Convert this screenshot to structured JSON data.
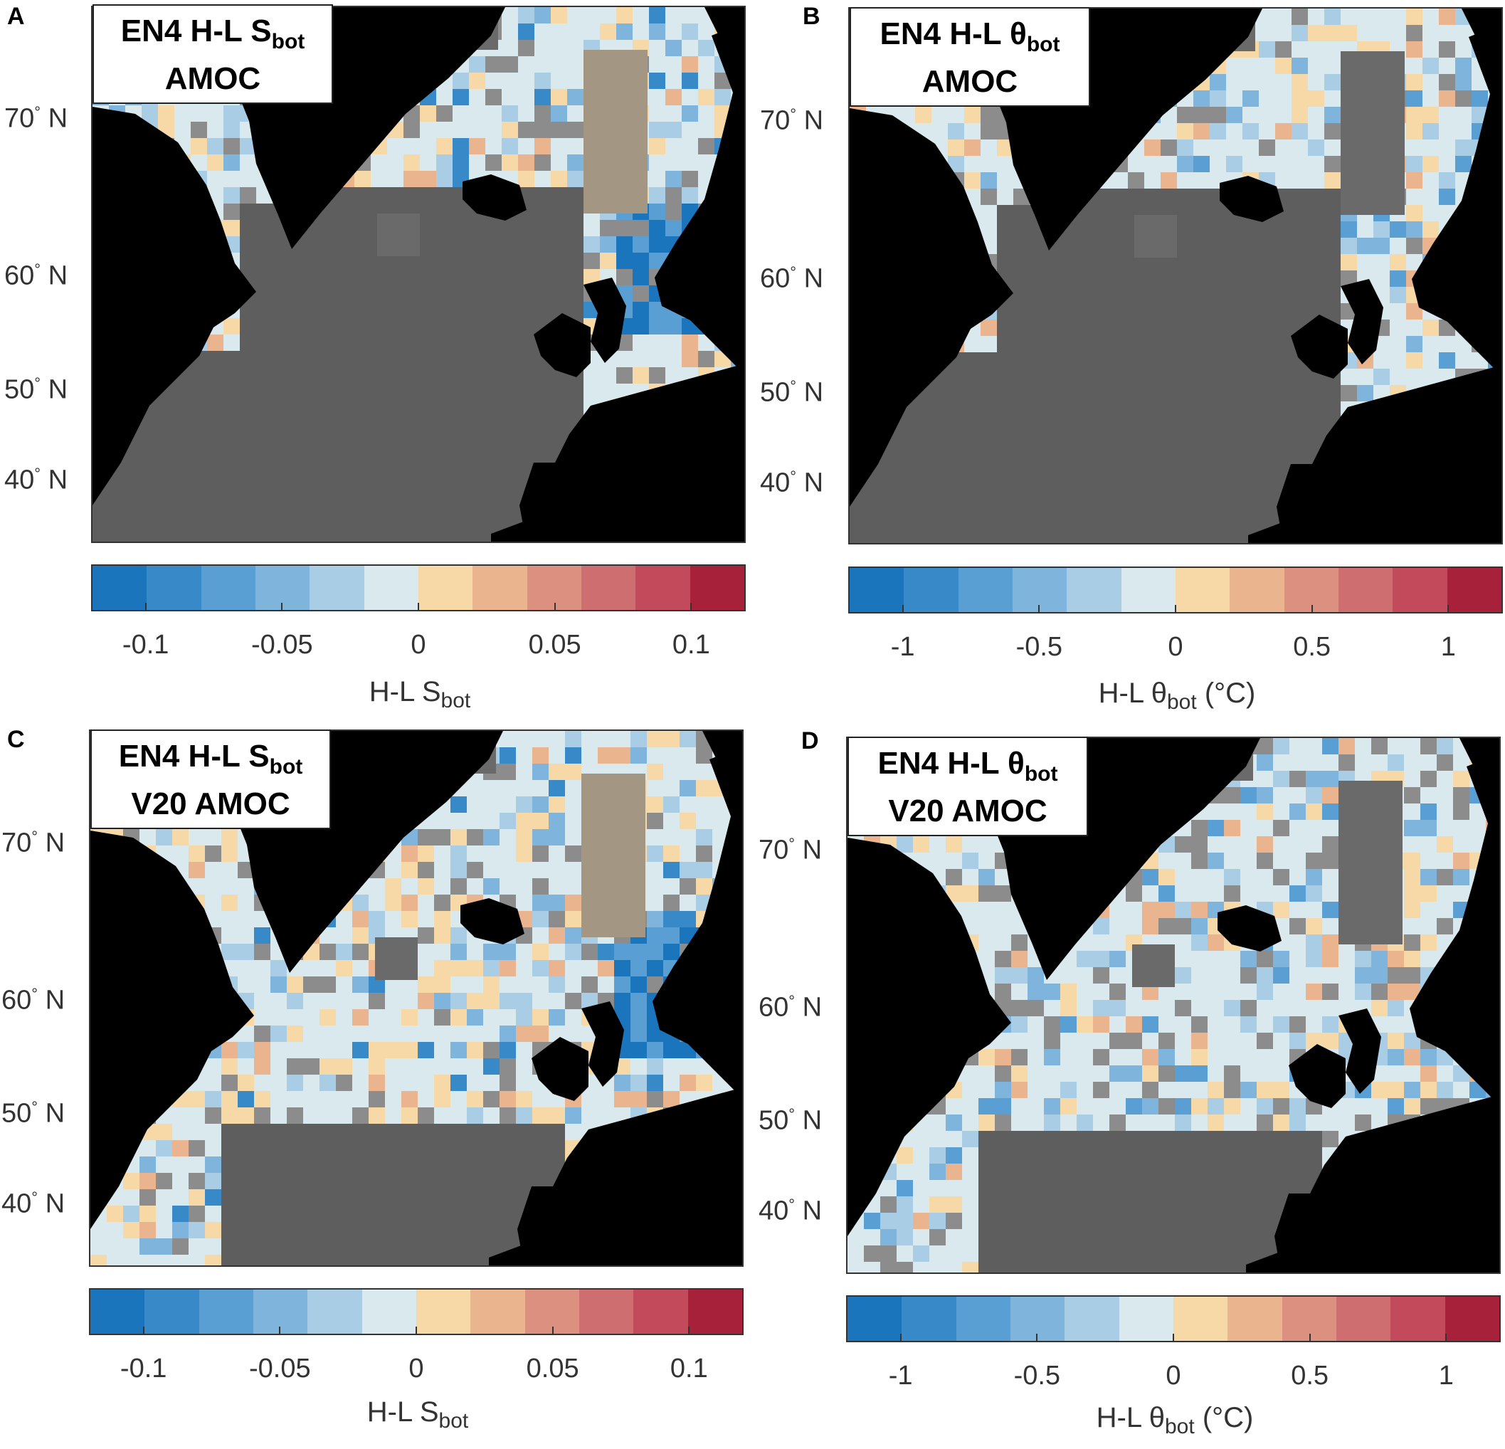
{
  "colors": {
    "scale": [
      "#1a75bd",
      "#3889c8",
      "#5a9fd3",
      "#7fb5dd",
      "#a8cde5",
      "#d9e9ed",
      "#f6d9a6",
      "#e9b48e",
      "#dc9080",
      "#cf6e70",
      "#c24a5a",
      "#a8213a"
    ],
    "land": "#000000",
    "no_data": "#5e5e5e",
    "insignificant": "#8c8c8c"
  },
  "panels": [
    {
      "letter": "A",
      "title_line1_prefix": "EN4 H-L S",
      "title_line1_sub": "bot",
      "title_line2": "AMOC",
      "latitudes": [
        {
          "deg": "70",
          "hemi": "N"
        },
        {
          "deg": "60",
          "hemi": "N"
        },
        {
          "deg": "50",
          "hemi": "N"
        },
        {
          "deg": "40",
          "hemi": "N"
        }
      ],
      "colorbar_ticks": [
        "-0.1",
        "-0.05",
        "0",
        "0.05",
        "0.1"
      ],
      "colorbar_range": [
        -0.12,
        0.12
      ],
      "colorbar_label_prefix": "H-L S",
      "colorbar_label_sub": "bot",
      "colorbar_label_suffix": ""
    },
    {
      "letter": "B",
      "title_line1_prefix": "EN4 H-L θ",
      "title_line1_sub": "bot",
      "title_line2": "AMOC",
      "latitudes": [
        {
          "deg": "70",
          "hemi": "N"
        },
        {
          "deg": "60",
          "hemi": "N"
        },
        {
          "deg": "50",
          "hemi": "N"
        },
        {
          "deg": "40",
          "hemi": "N"
        }
      ],
      "colorbar_ticks": [
        "-1",
        "-0.5",
        "0",
        "0.5",
        "1"
      ],
      "colorbar_range": [
        -1.2,
        1.2
      ],
      "colorbar_label_prefix": "H-L θ",
      "colorbar_label_sub": "bot",
      "colorbar_label_suffix": " (°C)"
    },
    {
      "letter": "C",
      "title_line1_prefix": "EN4 H-L S",
      "title_line1_sub": "bot",
      "title_line2": "V20 AMOC",
      "latitudes": [
        {
          "deg": "70",
          "hemi": "N"
        },
        {
          "deg": "60",
          "hemi": "N"
        },
        {
          "deg": "50",
          "hemi": "N"
        },
        {
          "deg": "40",
          "hemi": "N"
        }
      ],
      "colorbar_ticks": [
        "-0.1",
        "-0.05",
        "0",
        "0.05",
        "0.1"
      ],
      "colorbar_range": [
        -0.12,
        0.12
      ],
      "colorbar_label_prefix": "H-L S",
      "colorbar_label_sub": "bot",
      "colorbar_label_suffix": ""
    },
    {
      "letter": "D",
      "title_line1_prefix": "EN4 H-L θ",
      "title_line1_sub": "bot",
      "title_line2": "V20 AMOC",
      "latitudes": [
        {
          "deg": "70",
          "hemi": "N"
        },
        {
          "deg": "60",
          "hemi": "N"
        },
        {
          "deg": "50",
          "hemi": "N"
        },
        {
          "deg": "40",
          "hemi": "N"
        }
      ],
      "colorbar_ticks": [
        "-1",
        "-0.5",
        "0",
        "0.5",
        "1"
      ],
      "colorbar_range": [
        -1.2,
        1.2
      ],
      "colorbar_label_prefix": "H-L θ",
      "colorbar_label_sub": "bot",
      "colorbar_label_suffix": " (°C)"
    }
  ]
}
